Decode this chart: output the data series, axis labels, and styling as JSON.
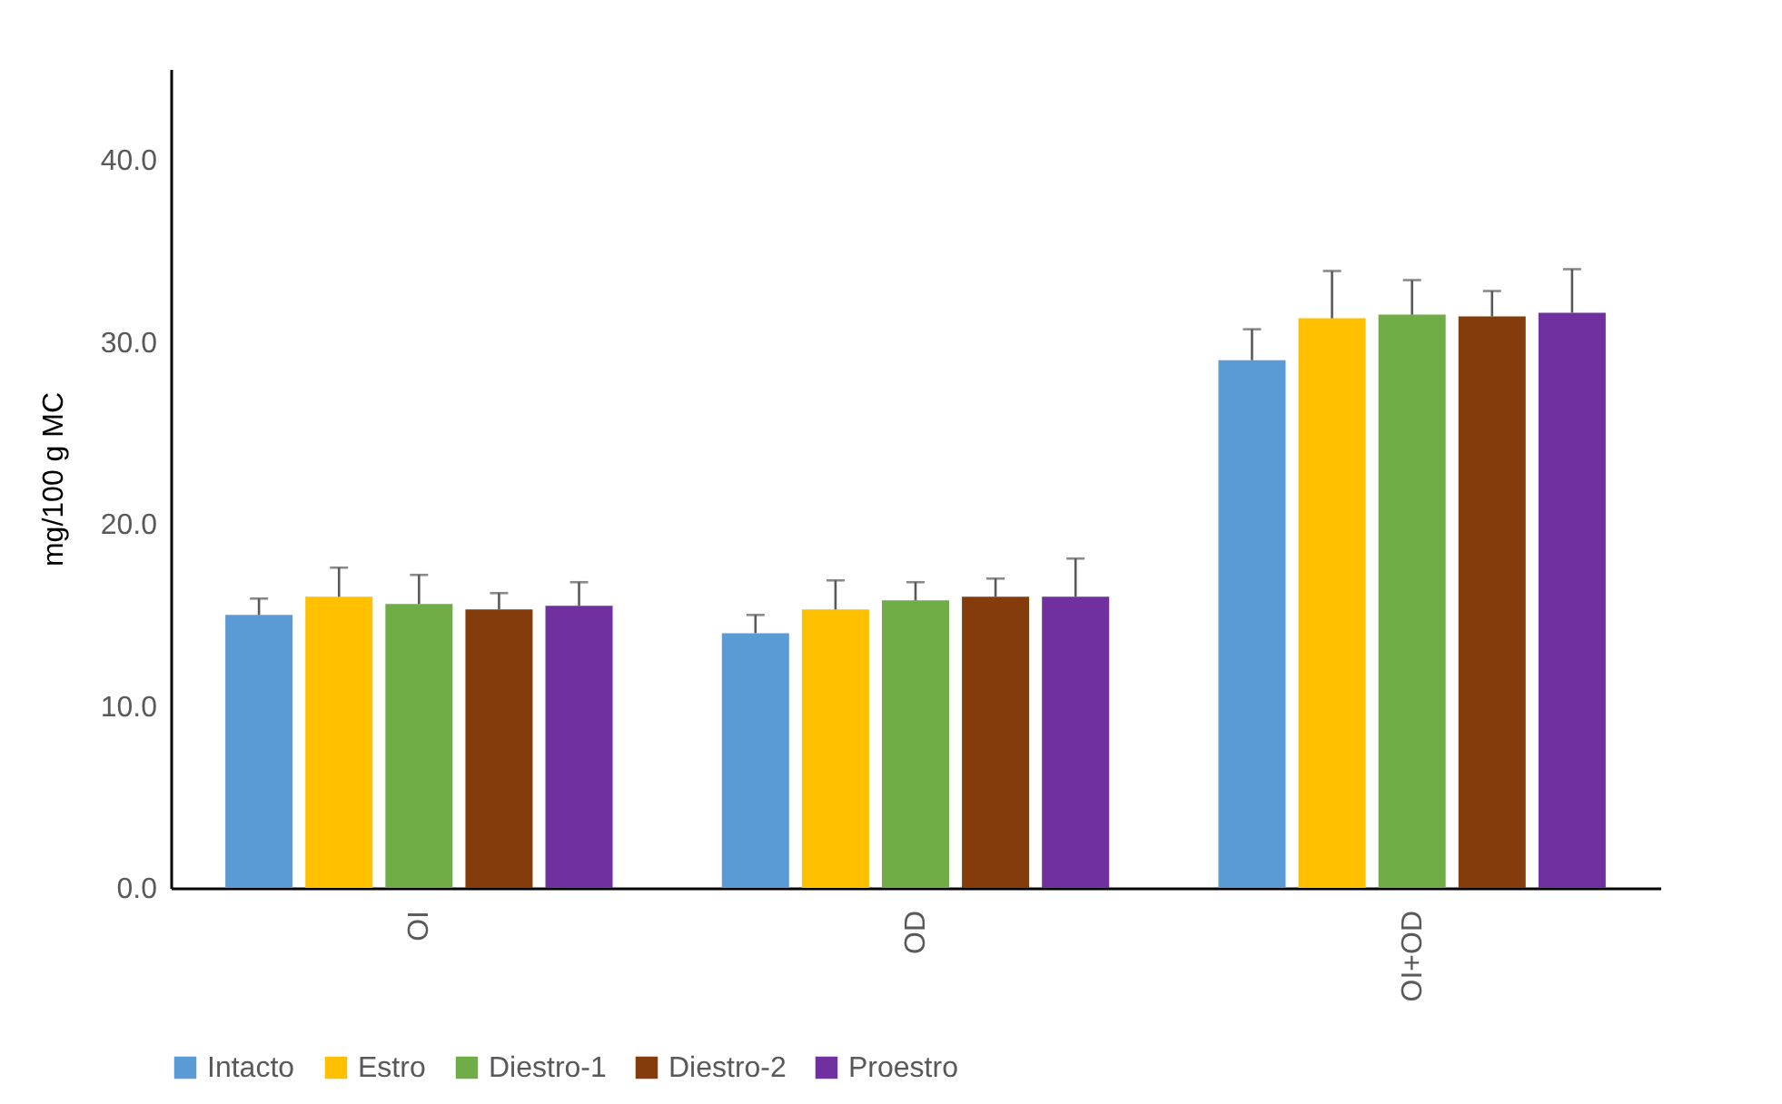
{
  "chart_data": {
    "type": "bar",
    "ylabel": "mg/100 g MC",
    "categories": [
      "OI",
      "OD",
      "OI+OD"
    ],
    "series": [
      {
        "name": "Intacto",
        "color": "#5b9bd5",
        "values": [
          15.0,
          14.0,
          29.0
        ],
        "errors": [
          [
            15.0,
            15.9
          ],
          [
            14.0,
            15.0
          ],
          [
            29.0,
            30.7
          ]
        ]
      },
      {
        "name": "Estro",
        "color": "#ffc000",
        "values": [
          16.0,
          15.3,
          31.3
        ],
        "errors": [
          [
            16.0,
            17.6
          ],
          [
            15.3,
            16.9
          ],
          [
            31.3,
            33.9
          ]
        ]
      },
      {
        "name": "Diestro-1",
        "color": "#70ad47",
        "values": [
          15.6,
          15.8,
          31.5
        ],
        "errors": [
          [
            15.6,
            17.2
          ],
          [
            15.8,
            16.8
          ],
          [
            31.5,
            33.4
          ]
        ]
      },
      {
        "name": "Diestro-2",
        "color": "#843c0c",
        "values": [
          15.3,
          16.0,
          31.4
        ],
        "errors": [
          [
            15.3,
            16.2
          ],
          [
            16.0,
            17.0
          ],
          [
            31.4,
            32.8
          ]
        ]
      },
      {
        "name": "Proestro",
        "color": "#7030a0",
        "values": [
          15.5,
          16.0,
          31.6
        ],
        "errors": [
          [
            15.5,
            16.8
          ],
          [
            16.0,
            18.1
          ],
          [
            31.6,
            34.0
          ]
        ]
      }
    ],
    "ylim": [
      0,
      45
    ],
    "yticks": [
      {
        "value": 0,
        "label": "0.0"
      },
      {
        "value": 10,
        "label": "10.0"
      },
      {
        "value": 20,
        "label": "20.0"
      },
      {
        "value": 30,
        "label": "30.0"
      },
      {
        "value": 40,
        "label": "40.0"
      }
    ],
    "grid": false,
    "legend": "bottom"
  }
}
